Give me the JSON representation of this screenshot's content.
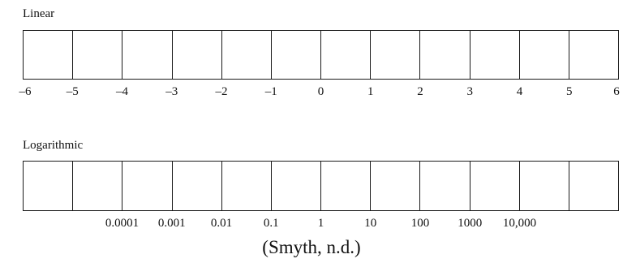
{
  "linear": {
    "title": "Linear",
    "cell_count": 12,
    "tick_labels": [
      "–6",
      "–5",
      "–4",
      "–3",
      "–2",
      "–1",
      "0",
      "1",
      "2",
      "3",
      "4",
      "5",
      "6"
    ]
  },
  "logarithmic": {
    "title": "Logarithmic",
    "cell_count": 12,
    "tick_labels": [
      "",
      "",
      "0.0001",
      "0.001",
      "0.01",
      "0.1",
      "1",
      "10",
      "100",
      "1000",
      "10,000",
      "",
      ""
    ]
  },
  "citation": "(Smyth, n.d.)"
}
